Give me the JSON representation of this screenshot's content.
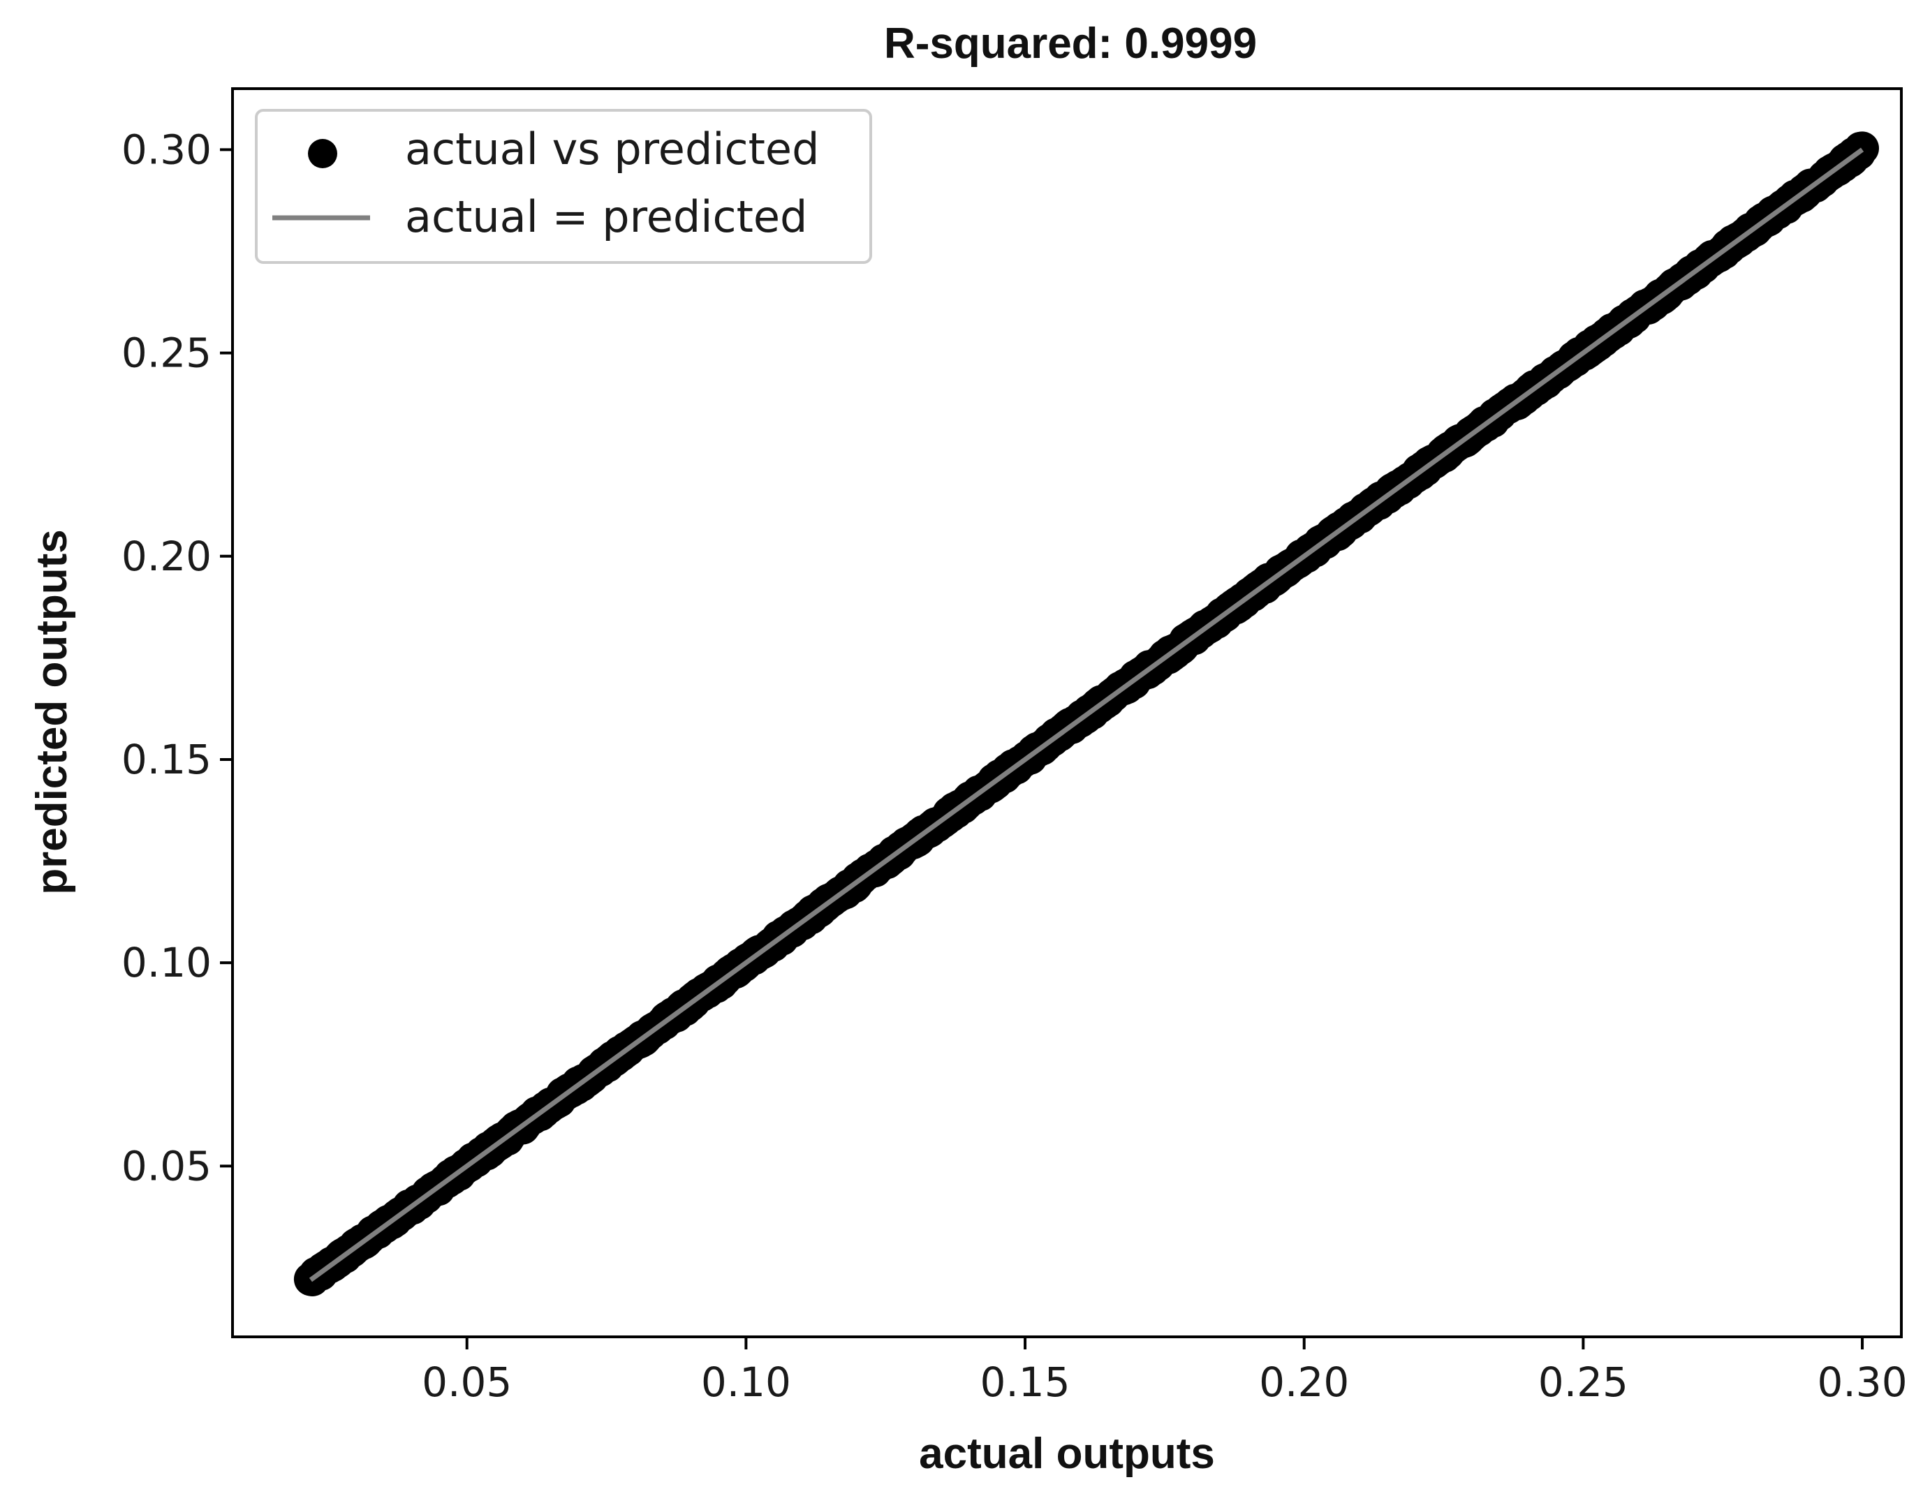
{
  "chart_data": {
    "type": "scatter",
    "title": "R-squared: 0.9999",
    "xlabel": "actual outputs",
    "ylabel": "predicted outputs",
    "xlim": [
      0.008,
      0.307
    ],
    "ylim": [
      0.008,
      0.315
    ],
    "x_ticks": [
      0.05,
      0.1,
      0.15,
      0.2,
      0.25,
      0.3
    ],
    "x_tick_labels": [
      "0.05",
      "0.10",
      "0.15",
      "0.20",
      "0.25",
      "0.30"
    ],
    "y_ticks": [
      0.05,
      0.1,
      0.15,
      0.2,
      0.25,
      0.3
    ],
    "y_tick_labels": [
      "0.05",
      "0.10",
      "0.15",
      "0.20",
      "0.25",
      "0.30"
    ],
    "grid": false,
    "legend_position": "top-left",
    "series": [
      {
        "name": "actual vs predicted",
        "kind": "scatter",
        "color": "#000000",
        "x_range": [
          0.022,
          0.3
        ],
        "relation": "predicted ≈ actual",
        "noise": 0.0006
      },
      {
        "name": "actual = predicted",
        "kind": "line",
        "color": "#808080",
        "x": [
          0.022,
          0.3
        ],
        "y": [
          0.022,
          0.3
        ]
      }
    ]
  }
}
